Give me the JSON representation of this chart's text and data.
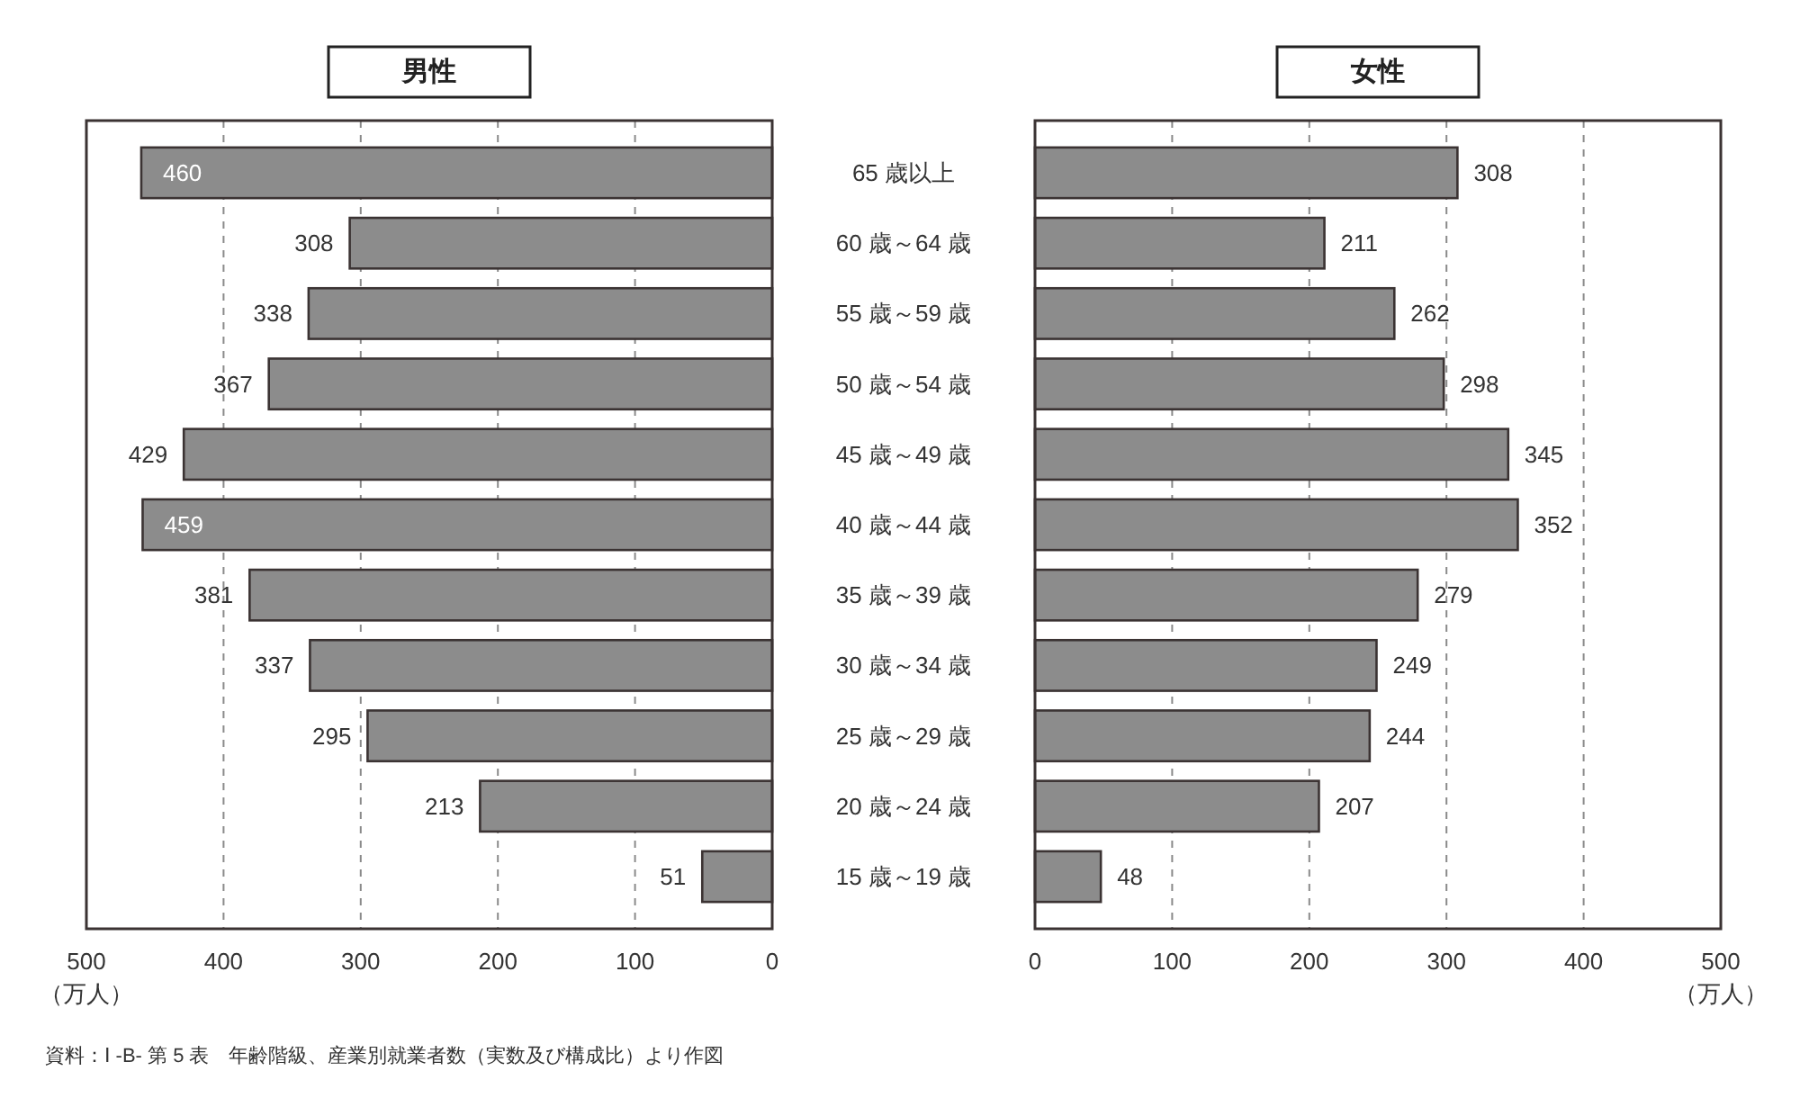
{
  "chart_data": [
    {
      "type": "bar",
      "orientation": "horizontal",
      "title": "男性",
      "xlabel": "（万人）",
      "categories": [
        "65 歳以上",
        "60 歳～64 歳",
        "55 歳～59 歳",
        "50 歳～54 歳",
        "45 歳～49 歳",
        "40 歳～44 歳",
        "35 歳～39 歳",
        "30 歳～34 歳",
        "25 歳～29 歳",
        "20 歳～24 歳",
        "15 歳～19 歳"
      ],
      "values": [
        460,
        308,
        338,
        367,
        429,
        459,
        381,
        337,
        295,
        213,
        51
      ],
      "color": "#8c8c8c",
      "xlim": [
        500,
        0
      ],
      "xticks": [
        500,
        400,
        300,
        200,
        100,
        0
      ],
      "grid": "x",
      "data_labels": true,
      "annotations": [
        "資料：Ⅰ -B- 第 5 表　年齢階級、産業別就業者数（実数及び構成比）より作図"
      ]
    },
    {
      "type": "bar",
      "orientation": "horizontal",
      "title": "女性",
      "xlabel": "（万人）",
      "categories": [
        null,
        null,
        null,
        null,
        null,
        null,
        null,
        null,
        null,
        null,
        null
      ],
      "values": [
        308,
        211,
        262,
        298,
        345,
        352,
        279,
        249,
        244,
        207,
        48
      ],
      "color": "#8c8c8c",
      "xlim": [
        0,
        500
      ],
      "xticks": [
        0,
        100,
        200,
        300,
        400,
        500
      ],
      "grid": "x",
      "data_labels": true,
      "tick_labels": "x"
    }
  ]
}
